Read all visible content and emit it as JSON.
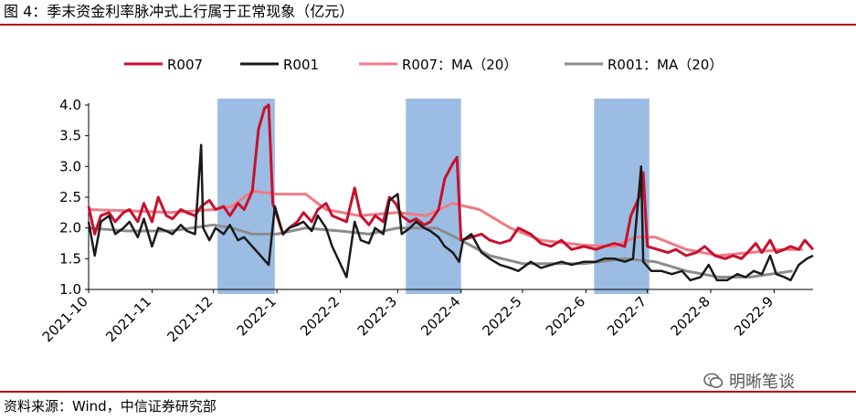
{
  "header": {
    "title": "图 4：季末资金利率脉冲式上行属于正常现象（亿元）"
  },
  "footer": {
    "source": "资料来源：Wind，中信证券研究部"
  },
  "watermark": {
    "text": "明晰笔谈",
    "icon": "wechat-icon"
  },
  "chart_data": {
    "type": "line",
    "title": "图 4：季末资金利率脉冲式上行属于正常现象（亿元）",
    "xlabel": "",
    "ylabel": "",
    "ylim": [
      1.0,
      4.0
    ],
    "yticks": [
      "1.0",
      "1.5",
      "2.0",
      "2.5",
      "3.0",
      "3.5",
      "4.0"
    ],
    "xlim": [
      "2021-10-01",
      "2022-09-20"
    ],
    "xticks": [
      {
        "label": "2021-10",
        "date": "2021-10-01"
      },
      {
        "label": "2021-11",
        "date": "2021-11-01"
      },
      {
        "label": "2021-12",
        "date": "2021-12-01"
      },
      {
        "label": "2022-1",
        "date": "2022-01-01"
      },
      {
        "label": "2022-2",
        "date": "2022-02-01"
      },
      {
        "label": "2022-3",
        "date": "2022-03-01"
      },
      {
        "label": "2022-4",
        "date": "2022-04-01"
      },
      {
        "label": "2022-5",
        "date": "2022-05-01"
      },
      {
        "label": "2022-6",
        "date": "2022-06-01"
      },
      {
        "label": "2022-7",
        "date": "2022-07-01"
      },
      {
        "label": "2022-8",
        "date": "2022-08-01"
      },
      {
        "label": "2022-9",
        "date": "2022-09-01"
      }
    ],
    "legend_position": "top",
    "grid": false,
    "highlight_bands": [
      {
        "start": "2021-12-03",
        "end": "2021-12-31",
        "color": "#7ba7d9"
      },
      {
        "start": "2022-03-05",
        "end": "2022-04-01",
        "color": "#7ba7d9"
      },
      {
        "start": "2022-06-05",
        "end": "2022-07-02",
        "color": "#7ba7d9"
      }
    ],
    "series": [
      {
        "name": "R007",
        "color": "#c8102e",
        "width": 3,
        "points": [
          [
            "2021-10-01",
            2.35
          ],
          [
            "2021-10-04",
            1.9
          ],
          [
            "2021-10-07",
            2.2
          ],
          [
            "2021-10-11",
            2.25
          ],
          [
            "2021-10-14",
            2.1
          ],
          [
            "2021-10-18",
            2.25
          ],
          [
            "2021-10-21",
            2.3
          ],
          [
            "2021-10-25",
            2.1
          ],
          [
            "2021-10-28",
            2.4
          ],
          [
            "2021-11-01",
            2.1
          ],
          [
            "2021-11-04",
            2.5
          ],
          [
            "2021-11-08",
            2.2
          ],
          [
            "2021-11-11",
            2.15
          ],
          [
            "2021-11-15",
            2.3
          ],
          [
            "2021-11-18",
            2.25
          ],
          [
            "2021-11-22",
            2.2
          ],
          [
            "2021-11-25",
            2.35
          ],
          [
            "2021-11-29",
            2.45
          ],
          [
            "2021-12-02",
            2.3
          ],
          [
            "2021-12-06",
            2.35
          ],
          [
            "2021-12-09",
            2.2
          ],
          [
            "2021-12-13",
            2.4
          ],
          [
            "2021-12-16",
            2.3
          ],
          [
            "2021-12-20",
            2.6
          ],
          [
            "2021-12-23",
            3.6
          ],
          [
            "2021-12-26",
            3.95
          ],
          [
            "2021-12-28",
            4.0
          ],
          [
            "2021-12-30",
            2.4
          ],
          [
            "2022-01-04",
            1.9
          ],
          [
            "2022-01-07",
            2.0
          ],
          [
            "2022-01-11",
            2.1
          ],
          [
            "2022-01-14",
            2.25
          ],
          [
            "2022-01-18",
            2.1
          ],
          [
            "2022-01-21",
            2.3
          ],
          [
            "2022-01-25",
            2.4
          ],
          [
            "2022-01-28",
            2.2
          ],
          [
            "2022-02-04",
            2.1
          ],
          [
            "2022-02-08",
            2.65
          ],
          [
            "2022-02-11",
            2.2
          ],
          [
            "2022-02-15",
            2.05
          ],
          [
            "2022-02-18",
            2.2
          ],
          [
            "2022-02-22",
            2.1
          ],
          [
            "2022-02-25",
            2.5
          ],
          [
            "2022-02-28",
            2.4
          ],
          [
            "2022-03-03",
            2.2
          ],
          [
            "2022-03-07",
            2.1
          ],
          [
            "2022-03-10",
            2.15
          ],
          [
            "2022-03-14",
            2.05
          ],
          [
            "2022-03-17",
            2.1
          ],
          [
            "2022-03-21",
            2.3
          ],
          [
            "2022-03-24",
            2.8
          ],
          [
            "2022-03-28",
            3.05
          ],
          [
            "2022-03-30",
            3.15
          ],
          [
            "2022-04-01",
            1.8
          ],
          [
            "2022-04-06",
            1.85
          ],
          [
            "2022-04-11",
            1.9
          ],
          [
            "2022-04-15",
            1.8
          ],
          [
            "2022-04-20",
            1.75
          ],
          [
            "2022-04-25",
            1.8
          ],
          [
            "2022-04-29",
            2.0
          ],
          [
            "2022-05-05",
            1.9
          ],
          [
            "2022-05-10",
            1.75
          ],
          [
            "2022-05-15",
            1.7
          ],
          [
            "2022-05-20",
            1.8
          ],
          [
            "2022-05-25",
            1.65
          ],
          [
            "2022-05-31",
            1.7
          ],
          [
            "2022-06-06",
            1.65
          ],
          [
            "2022-06-10",
            1.7
          ],
          [
            "2022-06-15",
            1.75
          ],
          [
            "2022-06-20",
            1.7
          ],
          [
            "2022-06-23",
            2.2
          ],
          [
            "2022-06-27",
            2.5
          ],
          [
            "2022-06-29",
            2.9
          ],
          [
            "2022-07-01",
            1.7
          ],
          [
            "2022-07-06",
            1.65
          ],
          [
            "2022-07-11",
            1.6
          ],
          [
            "2022-07-15",
            1.65
          ],
          [
            "2022-07-20",
            1.55
          ],
          [
            "2022-07-25",
            1.6
          ],
          [
            "2022-07-29",
            1.7
          ],
          [
            "2022-08-03",
            1.55
          ],
          [
            "2022-08-08",
            1.5
          ],
          [
            "2022-08-12",
            1.55
          ],
          [
            "2022-08-16",
            1.5
          ],
          [
            "2022-08-19",
            1.6
          ],
          [
            "2022-08-23",
            1.75
          ],
          [
            "2022-08-26",
            1.6
          ],
          [
            "2022-08-30",
            1.8
          ],
          [
            "2022-09-02",
            1.6
          ],
          [
            "2022-09-06",
            1.65
          ],
          [
            "2022-09-09",
            1.7
          ],
          [
            "2022-09-13",
            1.65
          ],
          [
            "2022-09-16",
            1.8
          ],
          [
            "2022-09-20",
            1.65
          ]
        ]
      },
      {
        "name": "R001",
        "color": "#1a1a1a",
        "width": 2.5,
        "points": [
          [
            "2021-10-01",
            2.1
          ],
          [
            "2021-10-04",
            1.55
          ],
          [
            "2021-10-07",
            2.1
          ],
          [
            "2021-10-11",
            2.2
          ],
          [
            "2021-10-14",
            1.9
          ],
          [
            "2021-10-18",
            2.0
          ],
          [
            "2021-10-21",
            2.1
          ],
          [
            "2021-10-25",
            1.85
          ],
          [
            "2021-10-28",
            2.15
          ],
          [
            "2021-11-01",
            1.7
          ],
          [
            "2021-11-04",
            2.0
          ],
          [
            "2021-11-08",
            1.95
          ],
          [
            "2021-11-11",
            1.9
          ],
          [
            "2021-11-15",
            2.05
          ],
          [
            "2021-11-18",
            1.95
          ],
          [
            "2021-11-22",
            1.9
          ],
          [
            "2021-11-25",
            3.35
          ],
          [
            "2021-11-26",
            2.0
          ],
          [
            "2021-11-29",
            1.8
          ],
          [
            "2021-12-02",
            2.0
          ],
          [
            "2021-12-06",
            1.9
          ],
          [
            "2021-12-09",
            2.05
          ],
          [
            "2021-12-13",
            1.8
          ],
          [
            "2021-12-16",
            1.85
          ],
          [
            "2021-12-20",
            1.7
          ],
          [
            "2021-12-24",
            1.55
          ],
          [
            "2021-12-28",
            1.4
          ],
          [
            "2021-12-31",
            2.35
          ],
          [
            "2022-01-04",
            1.9
          ],
          [
            "2022-01-07",
            2.0
          ],
          [
            "2022-01-11",
            2.05
          ],
          [
            "2022-01-14",
            2.1
          ],
          [
            "2022-01-18",
            1.95
          ],
          [
            "2022-01-21",
            2.2
          ],
          [
            "2022-01-25",
            2.0
          ],
          [
            "2022-01-28",
            1.7
          ],
          [
            "2022-02-04",
            1.2
          ],
          [
            "2022-02-08",
            2.1
          ],
          [
            "2022-02-11",
            1.8
          ],
          [
            "2022-02-15",
            1.75
          ],
          [
            "2022-02-18",
            2.0
          ],
          [
            "2022-02-22",
            1.9
          ],
          [
            "2022-02-25",
            2.45
          ],
          [
            "2022-03-01",
            2.55
          ],
          [
            "2022-03-03",
            1.9
          ],
          [
            "2022-03-07",
            2.0
          ],
          [
            "2022-03-10",
            2.1
          ],
          [
            "2022-03-14",
            2.0
          ],
          [
            "2022-03-17",
            1.95
          ],
          [
            "2022-03-21",
            1.85
          ],
          [
            "2022-03-24",
            1.7
          ],
          [
            "2022-03-28",
            1.6
          ],
          [
            "2022-03-31",
            1.45
          ],
          [
            "2022-04-02",
            1.8
          ],
          [
            "2022-04-06",
            1.9
          ],
          [
            "2022-04-11",
            1.6
          ],
          [
            "2022-04-15",
            1.5
          ],
          [
            "2022-04-20",
            1.4
          ],
          [
            "2022-04-25",
            1.35
          ],
          [
            "2022-04-29",
            1.3
          ],
          [
            "2022-05-05",
            1.45
          ],
          [
            "2022-05-10",
            1.35
          ],
          [
            "2022-05-15",
            1.4
          ],
          [
            "2022-05-20",
            1.45
          ],
          [
            "2022-05-25",
            1.4
          ],
          [
            "2022-05-31",
            1.45
          ],
          [
            "2022-06-06",
            1.45
          ],
          [
            "2022-06-10",
            1.5
          ],
          [
            "2022-06-15",
            1.5
          ],
          [
            "2022-06-20",
            1.45
          ],
          [
            "2022-06-24",
            1.5
          ],
          [
            "2022-06-28",
            3.0
          ],
          [
            "2022-06-29",
            1.45
          ],
          [
            "2022-07-03",
            1.3
          ],
          [
            "2022-07-08",
            1.3
          ],
          [
            "2022-07-13",
            1.25
          ],
          [
            "2022-07-18",
            1.3
          ],
          [
            "2022-07-22",
            1.15
          ],
          [
            "2022-07-27",
            1.2
          ],
          [
            "2022-07-31",
            1.4
          ],
          [
            "2022-08-04",
            1.15
          ],
          [
            "2022-08-09",
            1.15
          ],
          [
            "2022-08-14",
            1.25
          ],
          [
            "2022-08-18",
            1.2
          ],
          [
            "2022-08-22",
            1.3
          ],
          [
            "2022-08-26",
            1.25
          ],
          [
            "2022-08-30",
            1.55
          ],
          [
            "2022-09-02",
            1.25
          ],
          [
            "2022-09-06",
            1.2
          ],
          [
            "2022-09-09",
            1.15
          ],
          [
            "2022-09-13",
            1.4
          ],
          [
            "2022-09-17",
            1.5
          ],
          [
            "2022-09-20",
            1.55
          ]
        ]
      },
      {
        "name": "R007：MA（20）",
        "color": "#f07a86",
        "width": 3,
        "points": [
          [
            "2021-10-01",
            2.3
          ],
          [
            "2021-10-20",
            2.28
          ],
          [
            "2021-11-10",
            2.25
          ],
          [
            "2021-12-01",
            2.3
          ],
          [
            "2021-12-10",
            2.35
          ],
          [
            "2021-12-20",
            2.6
          ],
          [
            "2022-01-01",
            2.55
          ],
          [
            "2022-01-15",
            2.55
          ],
          [
            "2022-01-25",
            2.3
          ],
          [
            "2022-02-10",
            2.2
          ],
          [
            "2022-03-01",
            2.25
          ],
          [
            "2022-03-15",
            2.2
          ],
          [
            "2022-03-28",
            2.4
          ],
          [
            "2022-04-10",
            2.3
          ],
          [
            "2022-04-25",
            2.0
          ],
          [
            "2022-05-10",
            1.8
          ],
          [
            "2022-05-31",
            1.72
          ],
          [
            "2022-06-15",
            1.7
          ],
          [
            "2022-06-25",
            1.85
          ],
          [
            "2022-07-05",
            1.85
          ],
          [
            "2022-07-20",
            1.65
          ],
          [
            "2022-08-05",
            1.55
          ],
          [
            "2022-08-20",
            1.6
          ],
          [
            "2022-09-05",
            1.65
          ],
          [
            "2022-09-15",
            1.65
          ]
        ]
      },
      {
        "name": "R001：MA（20）",
        "color": "#8c8c8c",
        "width": 3,
        "points": [
          [
            "2021-10-01",
            2.0
          ],
          [
            "2021-10-20",
            1.95
          ],
          [
            "2021-11-10",
            1.95
          ],
          [
            "2021-12-01",
            2.05
          ],
          [
            "2021-12-10",
            2.0
          ],
          [
            "2021-12-20",
            1.9
          ],
          [
            "2022-01-01",
            1.9
          ],
          [
            "2022-01-15",
            2.0
          ],
          [
            "2022-02-01",
            1.95
          ],
          [
            "2022-02-15",
            1.9
          ],
          [
            "2022-03-01",
            2.0
          ],
          [
            "2022-03-20",
            2.0
          ],
          [
            "2022-04-01",
            1.8
          ],
          [
            "2022-04-15",
            1.55
          ],
          [
            "2022-05-01",
            1.42
          ],
          [
            "2022-05-31",
            1.42
          ],
          [
            "2022-06-20",
            1.5
          ],
          [
            "2022-07-05",
            1.45
          ],
          [
            "2022-07-20",
            1.3
          ],
          [
            "2022-08-05",
            1.2
          ],
          [
            "2022-08-20",
            1.2
          ],
          [
            "2022-09-10",
            1.3
          ]
        ]
      }
    ]
  }
}
